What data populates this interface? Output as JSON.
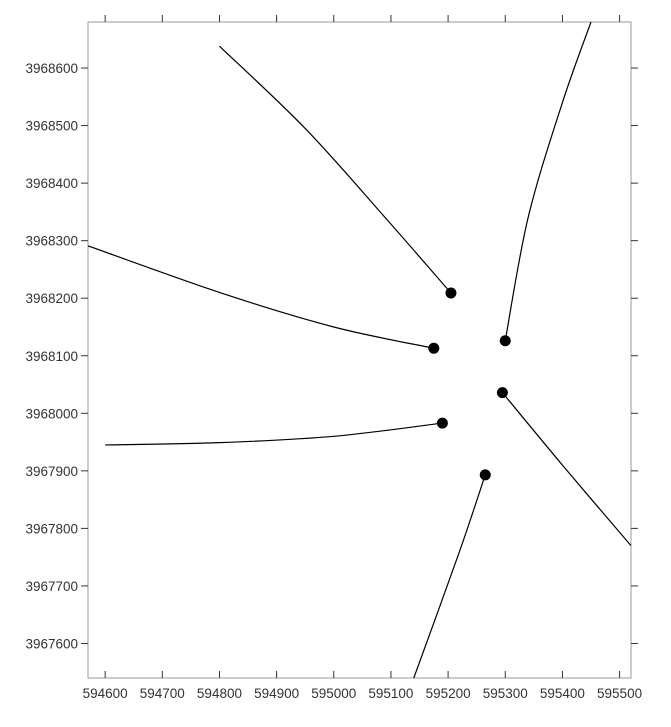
{
  "chart_data": {
    "type": "line",
    "title": "",
    "xlabel": "",
    "ylabel": "",
    "xlim": [
      594570,
      595520
    ],
    "ylim": [
      3967540,
      3968680
    ],
    "grid": false,
    "legend": "none",
    "x_ticks": [
      594600,
      594700,
      594800,
      594900,
      595000,
      595100,
      595200,
      595300,
      595400,
      595500
    ],
    "y_ticks": [
      3967600,
      3967700,
      3967800,
      3967900,
      3968000,
      3968100,
      3968200,
      3968300,
      3968400,
      3968500,
      3968600
    ],
    "series": [
      {
        "points": [
          [
            595205,
            3968209
          ],
          [
            595090,
            3968340
          ],
          [
            594950,
            3968495
          ],
          [
            594800,
            3968638
          ]
        ]
      },
      {
        "points": [
          [
            595300,
            3968126
          ],
          [
            595340,
            3968340
          ],
          [
            595400,
            3968540
          ],
          [
            595450,
            3968680
          ]
        ]
      },
      {
        "points": [
          [
            595175,
            3968113
          ],
          [
            595000,
            3968150
          ],
          [
            594800,
            3968210
          ],
          [
            594570,
            3968291
          ]
        ]
      },
      {
        "points": [
          [
            595190,
            3967983
          ],
          [
            595000,
            3967960
          ],
          [
            594800,
            3967949
          ],
          [
            594600,
            3967945
          ]
        ]
      },
      {
        "points": [
          [
            595295,
            3968036
          ],
          [
            595400,
            3967910
          ],
          [
            595520,
            3967770
          ]
        ]
      },
      {
        "points": [
          [
            595265,
            3967893
          ],
          [
            595220,
            3967760
          ],
          [
            595140,
            3967540
          ]
        ]
      }
    ],
    "markers": [
      [
        595205,
        3968209
      ],
      [
        595300,
        3968126
      ],
      [
        595175,
        3968113
      ],
      [
        595295,
        3968036
      ],
      [
        595190,
        3967983
      ],
      [
        595265,
        3967893
      ]
    ],
    "colors": {
      "line": "#000000",
      "marker": "#000000",
      "frame": "#9a9a9a",
      "text": "#333333"
    }
  }
}
